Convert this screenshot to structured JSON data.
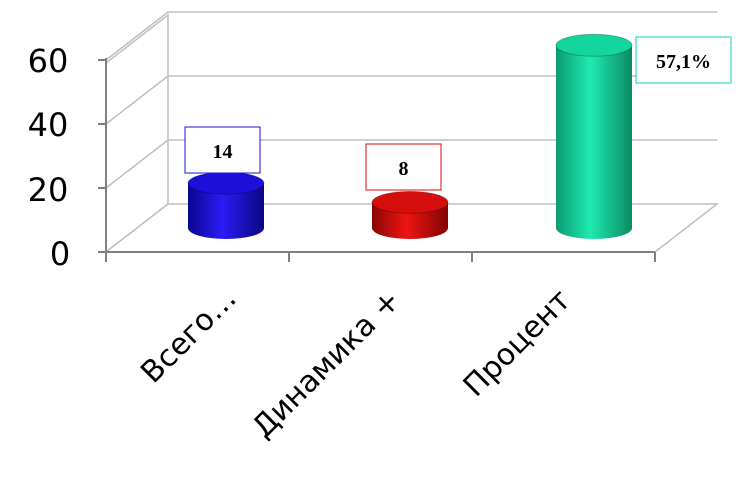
{
  "chart_data": {
    "type": "bar",
    "style": "3d-cylinder",
    "categories": [
      "Всего…",
      "Динамика +",
      "Процент"
    ],
    "values": [
      14,
      8,
      57.1
    ],
    "data_labels": [
      "14",
      "8",
      "57,1%"
    ],
    "colors": [
      "#1a10d8",
      "#d40d0d",
      "#12d69c"
    ],
    "ylim": [
      0,
      60
    ],
    "yticks": [
      "0",
      "20",
      "40",
      "60"
    ],
    "grid": true,
    "title": "",
    "xlabel": "",
    "ylabel": ""
  }
}
